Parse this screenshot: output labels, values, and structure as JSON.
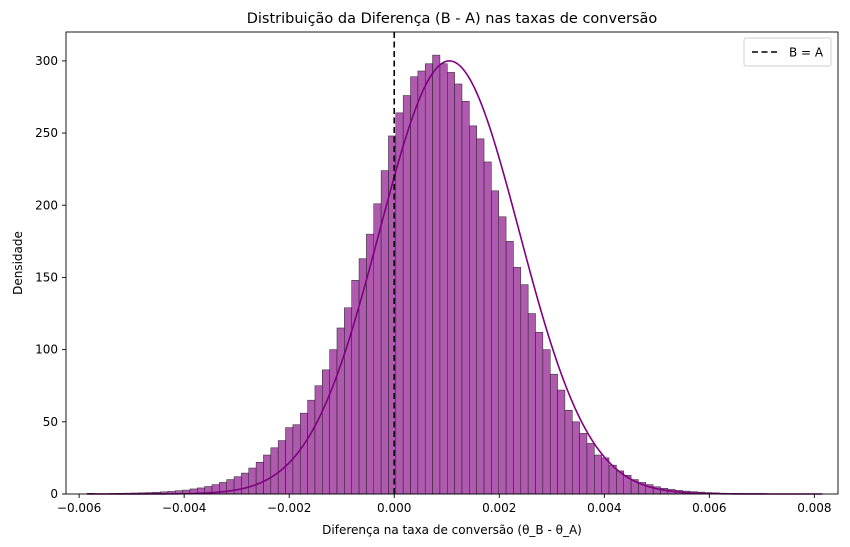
{
  "chart_data": {
    "type": "histogram",
    "title": "Distribuição da Diferença (B - A) nas taxas de conversão",
    "xlabel": "Diferença na taxa de conversão (θ_B - θ_A)",
    "ylabel": "Densidade",
    "xlim": [
      -0.00625,
      0.00845
    ],
    "ylim": [
      0,
      320
    ],
    "xticks": [
      -0.006,
      -0.004,
      -0.002,
      0.0,
      0.002,
      0.004,
      0.006,
      0.008
    ],
    "xtick_labels": [
      "−0.006",
      "−0.004",
      "−0.002",
      "0.000",
      "0.002",
      "0.004",
      "0.006",
      "0.008"
    ],
    "yticks": [
      0,
      50,
      100,
      150,
      200,
      250,
      300
    ],
    "ytick_labels": [
      "0",
      "50",
      "100",
      "150",
      "200",
      "250",
      "300"
    ],
    "bins": {
      "start": -0.00585,
      "width": 0.00014,
      "densities": [
        0.5,
        0.3,
        0.3,
        0.4,
        0.5,
        0.6,
        0.7,
        0.8,
        1.0,
        1.2,
        1.5,
        1.8,
        2.3,
        2.7,
        3.5,
        4.2,
        5.2,
        6.5,
        8.0,
        10,
        12,
        14.5,
        18,
        22,
        27,
        32,
        37,
        46,
        48,
        56,
        65,
        75,
        86,
        100,
        115,
        129,
        148,
        163,
        180,
        201,
        224,
        248,
        264,
        276,
        289,
        293,
        298,
        304,
        298,
        292,
        284,
        272,
        255,
        246,
        230,
        210,
        192,
        175,
        157,
        145,
        125,
        112,
        100,
        83,
        72,
        58,
        50,
        42,
        35,
        27,
        25,
        20,
        16,
        13,
        10,
        8,
        6.5,
        5,
        4,
        3.2,
        2.5,
        2.0,
        1.6,
        1.3,
        1.0,
        0.8,
        0.6,
        0.5,
        0.4,
        0.3,
        0.3,
        0.3,
        0.2,
        0.2,
        0.2,
        0.2,
        0.2,
        0.2,
        0.2,
        0.2
      ]
    },
    "kde": {
      "mean": 0.00105,
      "sd": 0.00133,
      "peak": 300,
      "x_range": [
        -0.00585,
        0.00815
      ]
    },
    "reference_line": {
      "x": 0.0,
      "label": "B = A",
      "style": "dashed",
      "color": "#000000"
    },
    "bar_color": "#a13da1",
    "bar_edge_color": "#222222",
    "kde_color": "#800080",
    "legend": {
      "position": "top-right",
      "entries": [
        "B = A"
      ]
    },
    "grid": false
  }
}
